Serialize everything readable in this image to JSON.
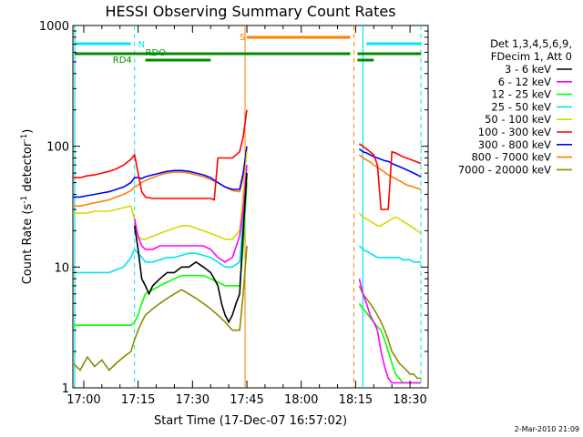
{
  "chart_data": {
    "type": "line",
    "title": "HESSI Observing Summary Count Rates",
    "xlabel": "Start Time (17-Dec-07 16:57:02)",
    "ylabel_parts": [
      "Count Rate (s",
      "-1",
      " detector",
      "-1",
      ")"
    ],
    "x_tick_labels": [
      "17:00",
      "17:15",
      "17:30",
      "17:45",
      "18:00",
      "18:15",
      "18:30"
    ],
    "x_tick_minutes": [
      3,
      18,
      33,
      48,
      63,
      78,
      93
    ],
    "xlim_minutes": [
      0,
      98
    ],
    "ylim": [
      1,
      1000
    ],
    "y_scale": "log",
    "y_tick_labels": [
      "1",
      "10",
      "100",
      "1000"
    ],
    "legend_placement": "right",
    "legend_header": [
      "Det 1,3,4,5,6,9,",
      "FDecim 1, Att 0"
    ],
    "footer_date": "2-Mar-2010 21:09",
    "flags": [
      {
        "label": "N",
        "color": "#00e5ee"
      },
      {
        "label": "S",
        "color": "#ff7f00"
      },
      {
        "label": "RDO",
        "color": "#008b00"
      },
      {
        "label": "RD4",
        "color": "#008b00"
      }
    ],
    "series": [
      {
        "name": "3 - 6 keV",
        "color": "#000000",
        "x": [
          17,
          18,
          19,
          20,
          21,
          22,
          24,
          26,
          28,
          30,
          32,
          34,
          36,
          38,
          39,
          40,
          41,
          42,
          43,
          44,
          45,
          46,
          47,
          48
        ],
        "y": [
          22,
          14,
          8,
          7,
          6,
          7,
          8,
          9,
          9,
          10,
          10,
          11,
          10,
          9,
          8,
          7,
          5,
          4,
          3.5,
          4,
          5,
          6,
          20,
          60
        ]
      },
      {
        "name": "6 - 12 keV",
        "color": "#ff00ff",
        "x": [
          17,
          18,
          19,
          20,
          22,
          24,
          26,
          28,
          30,
          32,
          34,
          36,
          38,
          40,
          42,
          44,
          46,
          47,
          48,
          79,
          80,
          81,
          82,
          83,
          84,
          85,
          86,
          87,
          88,
          89,
          90,
          91,
          92,
          93,
          94,
          95,
          96
        ],
        "y": [
          25,
          18,
          15,
          14,
          14,
          15,
          15,
          15,
          15,
          15,
          15,
          15,
          14,
          12,
          11,
          12,
          18,
          30,
          70,
          8,
          6,
          5,
          4,
          3.5,
          3,
          2,
          1.5,
          1.2,
          1.1,
          1.1,
          1.1,
          1.1,
          1.1,
          1.1,
          1.1,
          1.1,
          1.1
        ]
      },
      {
        "name": "12 - 25 keV",
        "color": "#00ff00",
        "x": [
          0,
          2,
          4,
          6,
          8,
          10,
          12,
          14,
          16,
          17,
          18,
          19,
          20,
          22,
          24,
          26,
          28,
          30,
          32,
          34,
          36,
          38,
          40,
          42,
          44,
          46,
          47,
          48,
          79,
          80,
          81,
          82,
          83,
          84,
          85,
          86,
          87,
          88,
          89,
          90,
          91,
          92,
          93,
          94,
          95,
          96
        ],
        "y": [
          3.3,
          3.3,
          3.3,
          3.3,
          3.3,
          3.3,
          3.3,
          3.3,
          3.3,
          3.5,
          4,
          5,
          6,
          6.5,
          7,
          7.5,
          8,
          8.5,
          8.5,
          8.5,
          8.5,
          8,
          7.5,
          7,
          7,
          7,
          15,
          50,
          5,
          4.5,
          4.2,
          3.8,
          3.5,
          3.2,
          3,
          2.5,
          2,
          1.6,
          1.3,
          1.2,
          1.1,
          1.1,
          1.1,
          1.1,
          1.1,
          1.1
        ]
      },
      {
        "name": "25 - 50 keV",
        "color": "#00e5ee",
        "x": [
          0,
          2,
          4,
          6,
          8,
          10,
          12,
          14,
          16,
          17,
          18,
          19,
          20,
          22,
          24,
          26,
          28,
          30,
          32,
          34,
          36,
          38,
          40,
          42,
          44,
          46,
          47,
          48,
          79,
          80,
          81,
          82,
          83,
          84,
          85,
          86,
          87,
          88,
          89,
          90,
          91,
          92,
          93,
          94,
          95,
          96
        ],
        "y": [
          9,
          9,
          9,
          9,
          9,
          9,
          9.5,
          10,
          12,
          14,
          13,
          12,
          11,
          11,
          11.5,
          12,
          12,
          12.5,
          13,
          13,
          12.5,
          12,
          11,
          10,
          10,
          11,
          25,
          60,
          15,
          14,
          13.5,
          13,
          12.5,
          12,
          12,
          12,
          12,
          12,
          12,
          12,
          11.5,
          11.5,
          11.5,
          11,
          11,
          11
        ]
      },
      {
        "name": "50 - 100 keV",
        "color": "#d7d700",
        "x": [
          0,
          2,
          4,
          6,
          8,
          10,
          12,
          14,
          16,
          17,
          18,
          19,
          20,
          22,
          24,
          26,
          28,
          30,
          32,
          34,
          36,
          38,
          40,
          42,
          44,
          46,
          47,
          48,
          79,
          80,
          81,
          82,
          83,
          84,
          85,
          86,
          87,
          88,
          89,
          90,
          91,
          92,
          93,
          94,
          95,
          96
        ],
        "y": [
          28,
          28,
          28,
          29,
          29,
          29,
          30,
          31,
          32,
          25,
          18,
          17,
          17,
          18,
          19,
          20,
          21,
          22,
          22,
          21,
          20,
          19,
          18,
          17,
          17,
          20,
          40,
          90,
          28,
          26,
          25,
          24,
          23,
          22,
          22,
          23,
          24,
          25,
          26,
          25,
          24,
          23,
          22,
          21,
          20,
          19
        ]
      },
      {
        "name": "100 - 300 keV",
        "color": "#ff0000",
        "x": [
          0,
          2,
          4,
          6,
          8,
          10,
          12,
          14,
          16,
          17,
          18,
          19,
          20,
          22,
          24,
          26,
          28,
          30,
          32,
          34,
          36,
          38,
          39,
          40,
          42,
          44,
          46,
          47,
          48,
          79,
          80,
          81,
          82,
          83,
          84,
          85,
          86,
          87,
          88,
          89,
          90,
          91,
          92,
          93,
          94,
          95,
          96
        ],
        "y": [
          55,
          55,
          57,
          58,
          60,
          62,
          65,
          70,
          78,
          85,
          60,
          42,
          38,
          37,
          37,
          37,
          37,
          37,
          37,
          37,
          37,
          37,
          36,
          80,
          80,
          80,
          90,
          120,
          200,
          105,
          100,
          95,
          90,
          85,
          70,
          30,
          30,
          30,
          90,
          88,
          85,
          82,
          80,
          78,
          76,
          74,
          72
        ]
      },
      {
        "name": "300 - 800 keV",
        "color": "#0000ff",
        "x": [
          0,
          2,
          4,
          6,
          8,
          10,
          12,
          14,
          16,
          17,
          18,
          19,
          20,
          22,
          24,
          26,
          28,
          30,
          32,
          34,
          36,
          38,
          40,
          42,
          44,
          46,
          47,
          48,
          79,
          80,
          81,
          82,
          83,
          84,
          85,
          86,
          87,
          88,
          89,
          90,
          91,
          92,
          93,
          94,
          95,
          96
        ],
        "y": [
          38,
          38,
          39,
          40,
          41,
          42,
          44,
          46,
          50,
          55,
          55,
          54,
          56,
          58,
          60,
          62,
          63,
          63,
          62,
          60,
          58,
          55,
          50,
          46,
          44,
          44,
          60,
          100,
          95,
          90,
          88,
          85,
          82,
          80,
          78,
          76,
          75,
          72,
          70,
          68,
          66,
          64,
          62,
          60,
          58,
          56
        ]
      },
      {
        "name": "800 - 7000 keV",
        "color": "#ff7f00",
        "x": [
          0,
          2,
          4,
          6,
          8,
          10,
          12,
          14,
          16,
          17,
          18,
          19,
          20,
          22,
          24,
          26,
          28,
          30,
          32,
          34,
          36,
          38,
          40,
          42,
          44,
          46,
          47,
          48,
          79,
          80,
          81,
          82,
          83,
          84,
          85,
          86,
          87,
          88,
          89,
          90,
          91,
          92,
          93,
          94,
          95,
          96
        ],
        "y": [
          32,
          32,
          33,
          34,
          35,
          36,
          38,
          40,
          43,
          46,
          48,
          50,
          52,
          55,
          58,
          60,
          61,
          61,
          60,
          58,
          56,
          53,
          50,
          46,
          43,
          42,
          55,
          90,
          85,
          80,
          77,
          74,
          70,
          67,
          64,
          61,
          58,
          56,
          54,
          52,
          50,
          48,
          47,
          46,
          45,
          44
        ]
      },
      {
        "name": "7000 - 20000 keV",
        "color": "#8b8b00",
        "x": [
          0,
          2,
          4,
          6,
          8,
          10,
          12,
          14,
          16,
          17,
          18,
          19,
          20,
          22,
          24,
          26,
          28,
          30,
          32,
          34,
          36,
          38,
          40,
          42,
          44,
          46,
          47,
          48,
          79,
          80,
          81,
          82,
          83,
          84,
          85,
          86,
          87,
          88,
          89,
          90,
          91,
          92,
          93,
          94,
          95,
          96
        ],
        "y": [
          1.6,
          1.4,
          1.8,
          1.5,
          1.7,
          1.4,
          1.6,
          1.8,
          2,
          2.5,
          3,
          3.5,
          4,
          4.5,
          5,
          5.5,
          6,
          6.5,
          6,
          5.5,
          5,
          4.5,
          4,
          3.5,
          3,
          3,
          6,
          15,
          7,
          6,
          5.5,
          5,
          4.5,
          4,
          3.5,
          3,
          2.5,
          2,
          1.8,
          1.6,
          1.5,
          1.4,
          1.3,
          1.3,
          1.2,
          1.2
        ]
      }
    ]
  }
}
